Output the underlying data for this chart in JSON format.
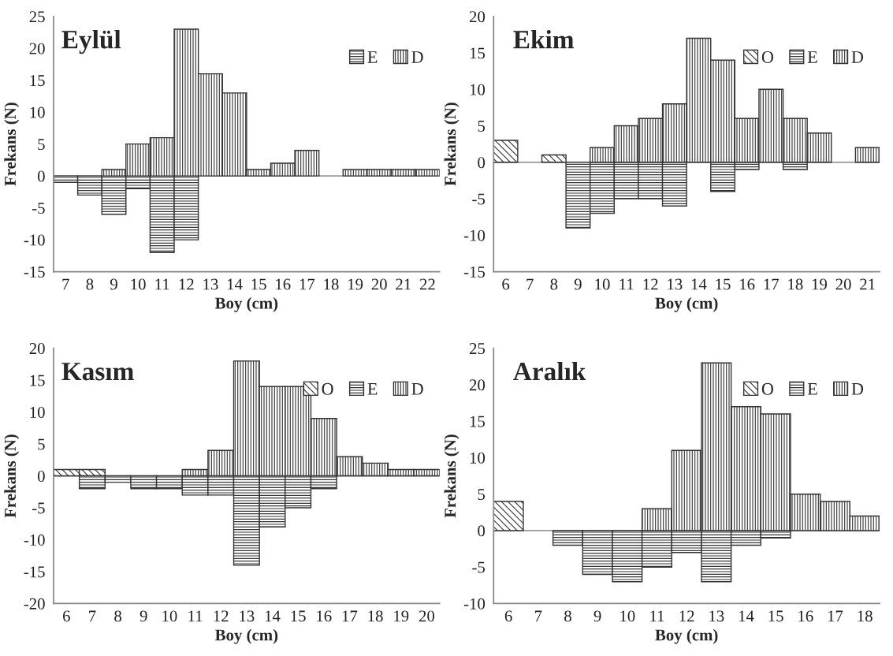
{
  "chart_data": [
    {
      "type": "bar",
      "title": "Eylül",
      "xlabel": "Boy (cm)",
      "ylabel": "Frekans (N)",
      "legend": "top right",
      "grid": false,
      "ref_lines": [
        {
          "axis": "y",
          "value": 0,
          "color": "#999999"
        }
      ],
      "categories": [
        "7",
        "8",
        "9",
        "10",
        "11",
        "12",
        "13",
        "14",
        "15",
        "16",
        "17",
        "18",
        "19",
        "20",
        "21",
        "22"
      ],
      "ylim": [
        -15,
        25
      ],
      "yticks": [
        -15,
        -10,
        -5,
        0,
        5,
        10,
        15,
        20,
        25
      ],
      "series": [
        {
          "name": "E",
          "color": "#333333",
          "values": [
            -1,
            -3,
            -6,
            -2,
            -12,
            -10,
            null,
            null,
            null,
            null,
            null,
            null,
            null,
            null,
            null,
            null
          ]
        },
        {
          "name": "D",
          "color": "#333333",
          "values": [
            null,
            null,
            1,
            5,
            6,
            23,
            16,
            13,
            1,
            2,
            4,
            null,
            1,
            1,
            1,
            1
          ]
        }
      ]
    },
    {
      "type": "bar",
      "title": "Ekim",
      "xlabel": "Boy (cm)",
      "ylabel": "Frekans (N)",
      "legend": "top right",
      "grid": false,
      "ref_lines": [
        {
          "axis": "y",
          "value": 0,
          "color": "#999999"
        }
      ],
      "categories": [
        "6",
        "7",
        "8",
        "9",
        "10",
        "11",
        "12",
        "13",
        "14",
        "15",
        "16",
        "17",
        "18",
        "19",
        "20",
        "21"
      ],
      "ylim": [
        -15,
        20
      ],
      "yticks": [
        -15,
        -10,
        -5,
        0,
        5,
        10,
        15,
        20
      ],
      "series": [
        {
          "name": "O",
          "color": "#333333",
          "values": [
            3,
            null,
            1,
            null,
            null,
            null,
            null,
            null,
            null,
            null,
            null,
            null,
            null,
            null,
            null,
            null
          ]
        },
        {
          "name": "E",
          "color": "#333333",
          "values": [
            null,
            null,
            null,
            -9,
            -7,
            -5,
            -5,
            -6,
            null,
            -4,
            -1,
            null,
            -1,
            null,
            null,
            null
          ]
        },
        {
          "name": "D",
          "color": "#333333",
          "values": [
            null,
            null,
            null,
            null,
            2,
            5,
            6,
            8,
            17,
            14,
            6,
            10,
            6,
            4,
            null,
            2
          ]
        }
      ]
    },
    {
      "type": "bar",
      "title": "Kasım",
      "xlabel": "Boy (cm)",
      "ylabel": "Frekans (N)",
      "legend": "top right",
      "grid": false,
      "ref_lines": [
        {
          "axis": "y",
          "value": 0,
          "color": "#999999"
        }
      ],
      "categories": [
        "6",
        "7",
        "8",
        "9",
        "10",
        "11",
        "12",
        "13",
        "14",
        "15",
        "16",
        "17",
        "18",
        "19",
        "20"
      ],
      "ylim": [
        -20,
        20
      ],
      "yticks": [
        -20,
        -15,
        -10,
        -5,
        0,
        5,
        10,
        15,
        20
      ],
      "series": [
        {
          "name": "O",
          "color": "#333333",
          "values": [
            1,
            1,
            null,
            null,
            null,
            null,
            null,
            null,
            null,
            null,
            null,
            null,
            null,
            null,
            null
          ]
        },
        {
          "name": "E",
          "color": "#333333",
          "values": [
            null,
            -2,
            -1,
            -2,
            -2,
            -3,
            -3,
            -14,
            -8,
            -5,
            -2,
            null,
            null,
            null,
            null
          ]
        },
        {
          "name": "D",
          "color": "#333333",
          "values": [
            null,
            null,
            null,
            null,
            null,
            1,
            4,
            18,
            14,
            14,
            9,
            3,
            2,
            1,
            1
          ]
        }
      ]
    },
    {
      "type": "bar",
      "title": "Aralık",
      "xlabel": "Boy (cm)",
      "ylabel": "Frekans (N)",
      "legend": "top right",
      "grid": false,
      "ref_lines": [
        {
          "axis": "y",
          "value": 0,
          "color": "#999999"
        }
      ],
      "categories": [
        "6",
        "7",
        "8",
        "9",
        "10",
        "11",
        "12",
        "13",
        "14",
        "15",
        "16",
        "17",
        "18"
      ],
      "ylim": [
        -10,
        25
      ],
      "yticks": [
        -10,
        -5,
        0,
        5,
        10,
        15,
        20,
        25
      ],
      "series": [
        {
          "name": "O",
          "color": "#333333",
          "values": [
            4,
            null,
            null,
            null,
            null,
            null,
            null,
            null,
            null,
            null,
            null,
            null,
            null
          ]
        },
        {
          "name": "E",
          "color": "#333333",
          "values": [
            null,
            null,
            -2,
            -6,
            -7,
            -5,
            -3,
            -7,
            -2,
            -1,
            null,
            null,
            null
          ]
        },
        {
          "name": "D",
          "color": "#333333",
          "values": [
            null,
            null,
            null,
            null,
            null,
            3,
            11,
            23,
            17,
            16,
            5,
            4,
            2
          ]
        }
      ]
    }
  ]
}
